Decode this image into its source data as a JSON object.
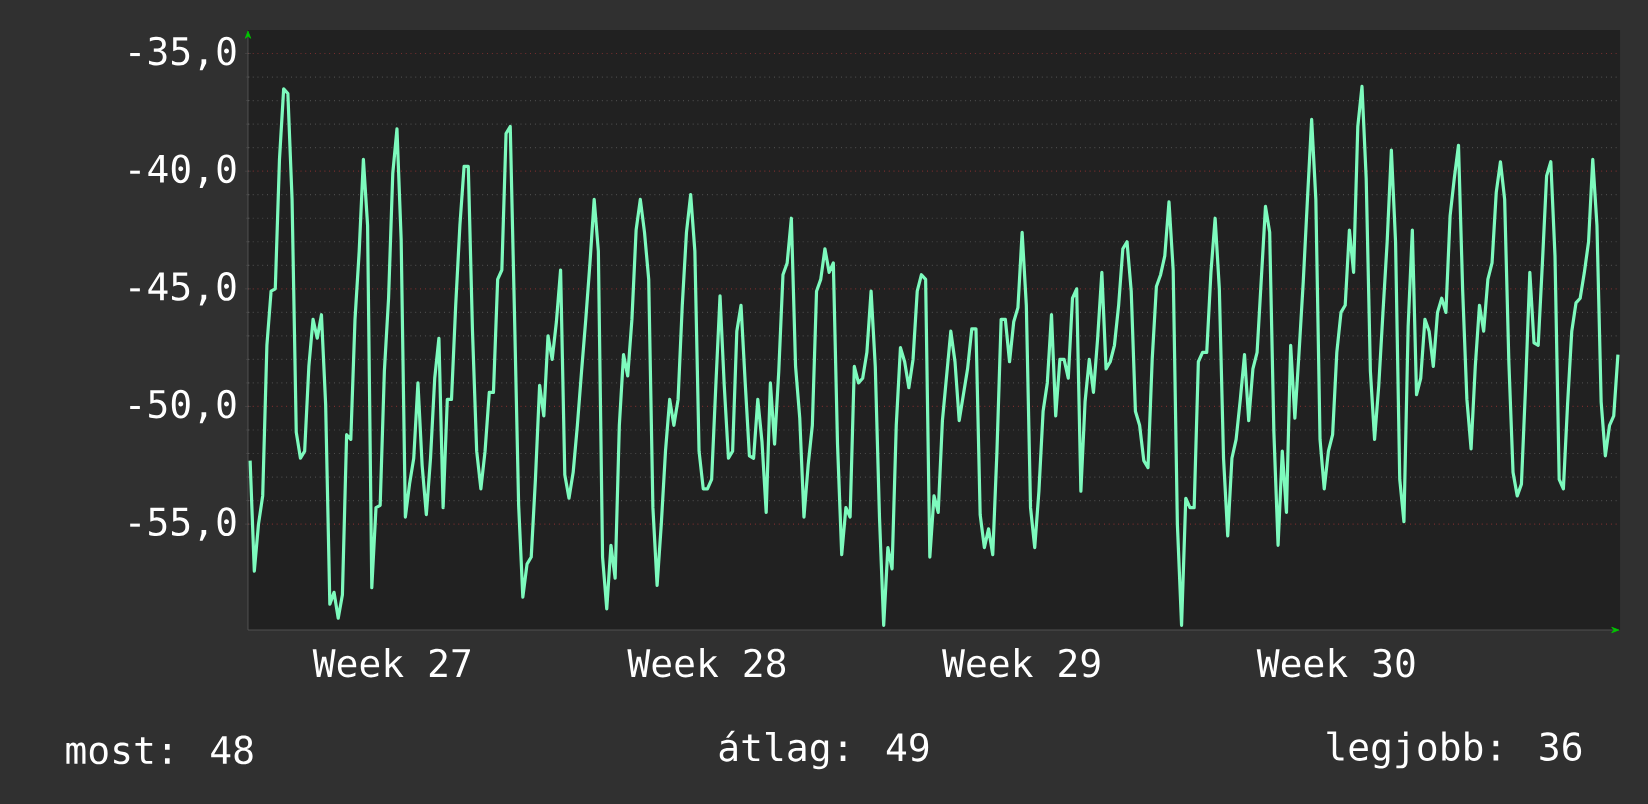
{
  "chart_data": {
    "type": "line",
    "color": "#7dfabd",
    "line_style": "solid",
    "grid": "y",
    "ylim": [
      -59.5,
      -34
    ],
    "yticks": [
      {
        "value": -55,
        "label": "-55,0"
      },
      {
        "value": -50,
        "label": "-50,0"
      },
      {
        "value": -45,
        "label": "-45,0"
      },
      {
        "value": -40,
        "label": "-40,0"
      },
      {
        "value": -35,
        "label": "-35,0"
      }
    ],
    "categories": [
      null,
      null,
      null,
      null,
      null,
      null,
      null,
      null,
      null,
      null,
      null,
      null,
      null,
      null,
      null,
      null,
      null,
      null,
      null,
      null,
      null,
      null,
      null,
      null,
      null,
      null,
      null,
      null,
      null,
      null,
      null,
      null,
      null,
      null,
      "Week 27",
      null,
      null,
      null,
      null,
      null,
      null,
      null,
      null,
      null,
      null,
      null,
      null,
      null,
      null,
      null,
      null,
      null,
      null,
      null,
      null,
      null,
      null,
      null,
      null,
      null,
      null,
      null,
      null,
      null,
      null,
      null,
      null,
      null,
      null,
      null,
      null,
      null,
      null,
      null,
      null,
      null,
      null,
      null,
      null,
      null,
      null,
      null,
      null,
      null,
      null,
      null,
      null,
      null,
      null,
      null,
      null,
      null,
      null,
      null,
      null,
      null,
      null,
      null,
      null,
      null,
      null,
      null,
      null,
      null,
      null,
      null,
      null,
      null,
      null,
      "Week 28",
      null,
      null,
      null,
      null,
      null,
      null,
      null,
      null,
      null,
      null,
      null,
      null,
      null,
      null,
      null,
      null,
      null,
      null,
      null,
      null,
      null,
      null,
      null,
      null,
      null,
      null,
      null,
      null,
      null,
      null,
      null,
      null,
      null,
      null,
      null,
      null,
      null,
      null,
      null,
      null,
      null,
      null,
      null,
      null,
      null,
      null,
      null,
      null,
      null,
      null,
      null,
      null,
      null,
      null,
      null,
      null,
      null,
      null,
      null,
      null,
      null,
      null,
      null,
      null,
      null,
      null,
      null,
      null,
      null,
      null,
      null,
      null,
      null,
      null,
      "Week 29",
      null,
      null,
      null,
      null,
      null,
      null,
      null,
      null,
      null,
      null,
      null,
      null,
      null,
      null,
      null,
      null,
      null,
      null,
      null,
      null,
      null,
      null,
      null,
      null,
      null,
      null,
      null,
      null,
      null,
      null,
      null,
      null,
      null,
      null,
      null,
      null,
      null,
      null,
      null,
      null,
      null,
      null,
      null,
      null,
      null,
      null,
      null,
      null,
      null,
      null,
      null,
      null,
      null,
      null,
      null,
      null,
      null,
      null,
      null,
      null,
      null,
      null,
      null,
      null,
      null,
      null,
      null,
      null,
      null,
      null,
      null,
      null,
      null,
      null,
      "Week 30",
      null,
      null,
      null,
      null,
      null,
      null,
      null,
      null,
      null,
      null,
      null,
      null,
      null,
      null,
      null,
      null,
      null,
      null,
      null,
      null,
      null,
      null,
      null,
      null,
      null,
      null,
      null,
      null,
      null,
      null,
      null,
      null,
      null,
      null,
      null,
      null,
      null,
      null,
      null,
      null,
      null,
      null,
      null,
      null,
      null,
      null,
      null,
      null,
      null,
      null,
      null,
      null,
      null,
      null,
      null,
      null,
      null,
      null,
      null,
      null,
      null,
      null,
      null,
      null,
      null,
      null,
      null
    ],
    "values": [
      -52.3,
      -57.0,
      -55.0,
      -53.8,
      -47.4,
      -45.1,
      -45.0,
      -39.5,
      -36.5,
      -36.7,
      -41.2,
      -51.1,
      -52.2,
      -51.9,
      -48.3,
      -46.3,
      -47.1,
      -46.1,
      -49.9,
      -58.4,
      -57.9,
      -59.0,
      -58.0,
      -51.2,
      -51.4,
      -46.3,
      -43.4,
      -39.5,
      -42.3,
      -57.7,
      -54.3,
      -54.2,
      -48.5,
      -45.4,
      -40.1,
      -38.2,
      -42.9,
      -54.7,
      -53.3,
      -52.2,
      -49.0,
      -52.5,
      -54.6,
      -52.2,
      -48.8,
      -47.1,
      -54.3,
      -49.7,
      -49.7,
      -45.7,
      -42.3,
      -39.8,
      -39.8,
      -46.8,
      -51.9,
      -53.5,
      -51.9,
      -49.4,
      -49.4,
      -44.6,
      -44.2,
      -38.4,
      -38.1,
      -46.0,
      -54.2,
      -58.1,
      -56.7,
      -56.4,
      -53.1,
      -49.1,
      -50.4,
      -47.0,
      -48.0,
      -46.4,
      -44.2,
      -52.9,
      -53.9,
      -52.8,
      -50.8,
      -48.5,
      -46.3,
      -43.9,
      -41.2,
      -43.4,
      -56.4,
      -58.6,
      -55.9,
      -57.3,
      -50.8,
      -47.8,
      -48.7,
      -46.3,
      -42.5,
      -41.2,
      -42.6,
      -44.6,
      -54.3,
      -57.6,
      -55.0,
      -51.9,
      -49.7,
      -50.8,
      -49.7,
      -45.7,
      -42.6,
      -41.0,
      -43.4,
      -51.9,
      -53.5,
      -53.5,
      -53.1,
      -49.1,
      -45.3,
      -49.1,
      -52.2,
      -51.9,
      -46.8,
      -45.7,
      -49.0,
      -52.1,
      -52.2,
      -49.7,
      -51.5,
      -54.5,
      -49.0,
      -51.6,
      -48.5,
      -44.4,
      -43.9,
      -42.0,
      -48.3,
      -50.5,
      -54.7,
      -52.5,
      -50.8,
      -45.1,
      -44.6,
      -43.3,
      -44.3,
      -43.9,
      -51.6,
      -56.3,
      -54.3,
      -54.7,
      -48.3,
      -49.0,
      -48.8,
      -47.7,
      -45.1,
      -48.3,
      -54.7,
      -59.3,
      -56.0,
      -56.9,
      -50.8,
      -47.5,
      -48.1,
      -49.2,
      -48.0,
      -45.1,
      -44.4,
      -44.6,
      -56.4,
      -53.8,
      -54.5,
      -50.6,
      -48.7,
      -46.8,
      -48.1,
      -50.6,
      -49.5,
      -48.4,
      -46.7,
      -46.7,
      -54.6,
      -56.0,
      -55.2,
      -56.3,
      -51.9,
      -46.3,
      -46.3,
      -48.1,
      -46.4,
      -45.8,
      -42.6,
      -45.7,
      -54.3,
      -56.0,
      -53.6,
      -50.2,
      -49.0,
      -46.1,
      -50.4,
      -48.0,
      -48.0,
      -48.8,
      -45.4,
      -45.0,
      -53.6,
      -49.8,
      -48.0,
      -49.4,
      -47.1,
      -44.3,
      -48.4,
      -48.1,
      -47.4,
      -45.7,
      -43.3,
      -43.0,
      -45.1,
      -50.2,
      -50.8,
      -52.3,
      -52.6,
      -48.0,
      -44.9,
      -44.4,
      -43.6,
      -41.3,
      -44.2,
      -55.0,
      -59.3,
      -53.9,
      -54.3,
      -54.3,
      -48.1,
      -47.7,
      -47.7,
      -44.3,
      -42.0,
      -45.0,
      -52.2,
      -55.5,
      -52.2,
      -51.4,
      -49.7,
      -47.8,
      -50.6,
      -48.4,
      -47.7,
      -44.6,
      -41.5,
      -42.6,
      -51.1,
      -55.9,
      -51.9,
      -54.5,
      -47.4,
      -50.5,
      -47.7,
      -44.7,
      -41.2,
      -37.8,
      -41.2,
      -51.4,
      -53.5,
      -51.9,
      -51.2,
      -47.7,
      -46.0,
      -45.7,
      -42.5,
      -44.3,
      -38.1,
      -36.4,
      -40.3,
      -48.5,
      -51.4,
      -49.1,
      -46.0,
      -43.0,
      -39.1,
      -43.0,
      -53.1,
      -54.9,
      -46.6,
      -42.5,
      -49.5,
      -48.8,
      -46.3,
      -46.8,
      -48.3,
      -46.0,
      -45.4,
      -46.0,
      -41.9,
      -40.3,
      -38.9,
      -45.1,
      -49.7,
      -51.8,
      -48.3,
      -45.7,
      -46.8,
      -44.6,
      -43.9,
      -40.9,
      -39.6,
      -41.2,
      -48.1,
      -52.8,
      -53.8,
      -53.3,
      -49.1,
      -44.3,
      -47.3,
      -47.4,
      -43.9,
      -40.2,
      -39.6,
      -43.6,
      -53.1,
      -53.5,
      -49.9,
      -46.8,
      -45.6,
      -45.4,
      -44.3,
      -43.0,
      -39.5,
      -42.3,
      -49.8,
      -52.1,
      -50.8,
      -50.4,
      -47.8
    ],
    "annotations": [
      "most: 48",
      "átlag: 49",
      "legjobb: 36"
    ]
  }
}
